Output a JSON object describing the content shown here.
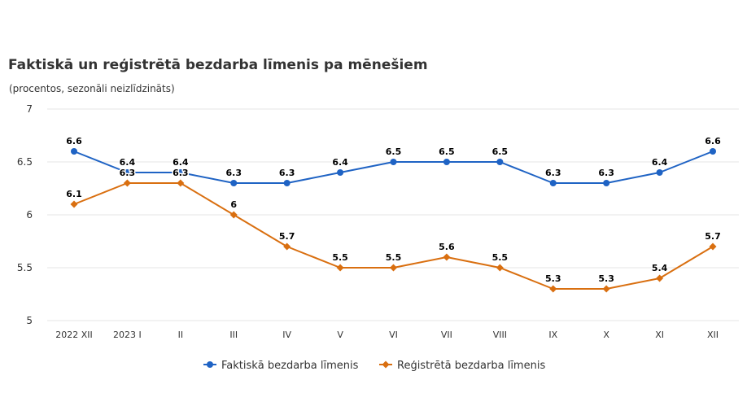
{
  "title": "Faktiskā un reģistrētā bezdarba līmenis pa mēnešiem",
  "subtitle": "(procentos, sezonāli neizlīdzināts)",
  "chart_data": {
    "type": "line",
    "title": "Faktiskā un reģistrētā bezdarba līmenis pa mēnešiem",
    "subtitle": "(procentos, sezonāli neizlīdzināts)",
    "xlabel": "",
    "ylabel": "",
    "categories": [
      "2022 XII",
      "2023 I",
      "II",
      "III",
      "IV",
      "V",
      "VI",
      "VII",
      "VIII",
      "IX",
      "X",
      "XI",
      "XII"
    ],
    "yticks": [
      "5",
      "5.5",
      "6",
      "6.5",
      "7"
    ],
    "ylim": [
      5,
      7
    ],
    "grid": true,
    "legend_position": "bottom",
    "series": [
      {
        "name": "Faktiskā bezdarba līmenis",
        "color": "#1f63c4",
        "marker": "circle",
        "values": [
          6.6,
          6.4,
          6.4,
          6.3,
          6.3,
          6.4,
          6.5,
          6.5,
          6.5,
          6.3,
          6.3,
          6.4,
          6.6
        ]
      },
      {
        "name": "Reģistrētā bezdarba līmenis",
        "color": "#d96f10",
        "marker": "diamond",
        "values": [
          6.1,
          6.3,
          6.3,
          6.0,
          5.7,
          5.5,
          5.5,
          5.6,
          5.5,
          5.3,
          5.3,
          5.4,
          5.7
        ]
      }
    ]
  }
}
